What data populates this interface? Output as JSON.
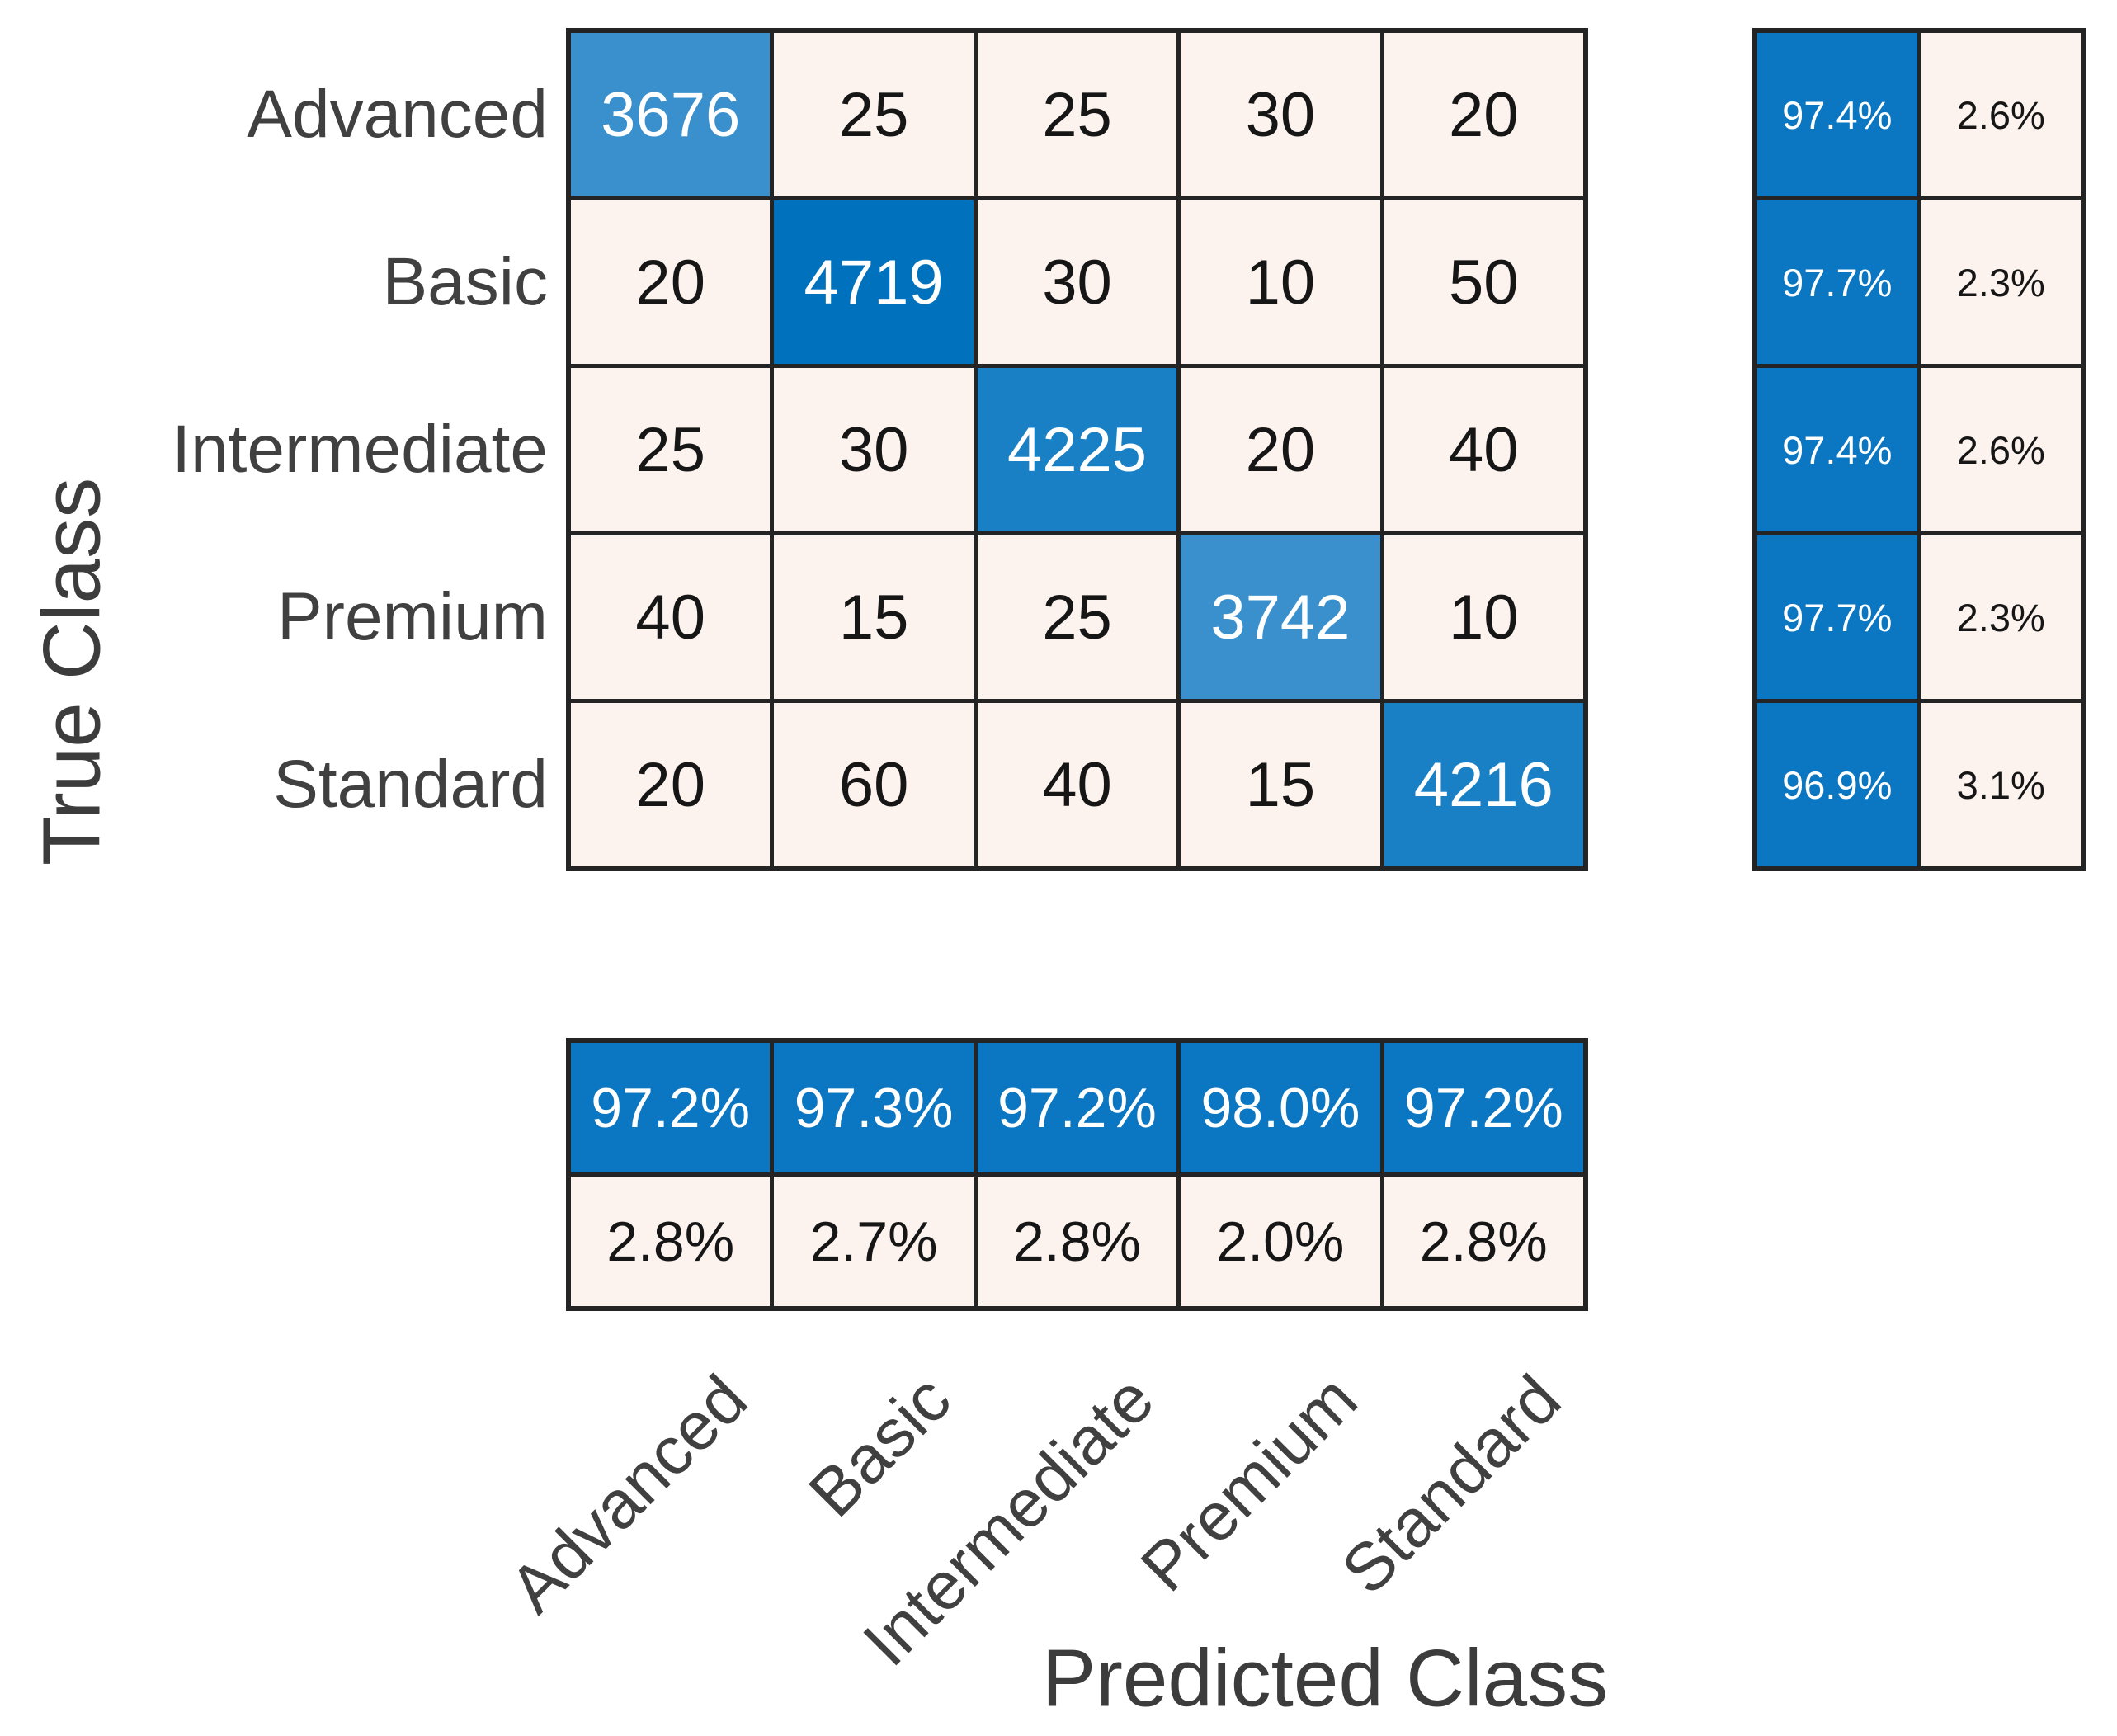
{
  "figure": {
    "background": "#ffffff"
  },
  "chart_data": {
    "type": "heatmap",
    "variant": "confusion-matrix-with-row-and-column-summaries",
    "xlabel": "Predicted Class",
    "ylabel": "True Class",
    "classes": [
      "Advanced",
      "Basic",
      "Intermediate",
      "Premium",
      "Standard"
    ],
    "matrix": [
      [
        3676,
        25,
        25,
        30,
        20
      ],
      [
        20,
        4719,
        30,
        10,
        50
      ],
      [
        25,
        30,
        4225,
        20,
        40
      ],
      [
        40,
        15,
        25,
        3742,
        10
      ],
      [
        20,
        60,
        40,
        15,
        4216
      ]
    ],
    "row_summary": {
      "correct": [
        "97.4%",
        "97.7%",
        "97.4%",
        "97.7%",
        "96.9%"
      ],
      "incorrect": [
        "2.6%",
        "2.3%",
        "2.6%",
        "2.3%",
        "3.1%"
      ]
    },
    "column_summary": {
      "correct": [
        "97.2%",
        "97.3%",
        "97.2%",
        "98.0%",
        "97.2%"
      ],
      "incorrect": [
        "2.8%",
        "2.7%",
        "2.8%",
        "2.0%",
        "2.8%"
      ]
    },
    "grid_on": true,
    "legend_position": "none",
    "colors": {
      "diagonal_max": "#0072bd",
      "diagonal_high": "#1980c6",
      "diagonal_low": "#3990cd",
      "off_diagonal": "#fdf3ee",
      "summary_positive": "#0b76c1",
      "summary_negative": "#fdf3ee",
      "grid_line": "#242424",
      "cell_text_dark": "#161616",
      "cell_text_light": "#ffffff",
      "tick_text": "#404040",
      "title_text": "#3c3c3c"
    }
  }
}
